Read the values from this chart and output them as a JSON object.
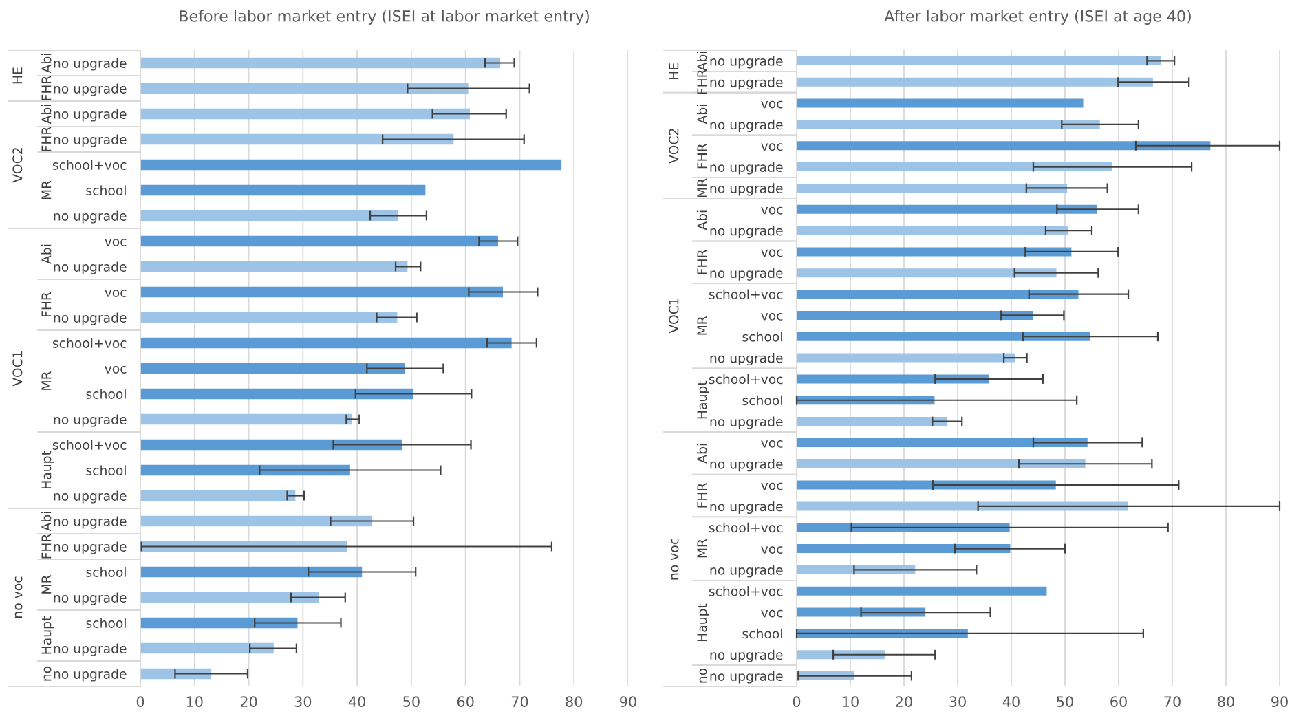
{
  "chart_data": [
    {
      "type": "bar",
      "orientation": "horizontal",
      "title": "Before labor market entry (ISEI at labor market entry)",
      "categories": [
        "no upgrade",
        "no upgrade",
        "no upgrade",
        "no upgrade",
        "school+voc",
        "school",
        "no upgrade",
        "voc",
        "no upgrade",
        "voc",
        "no upgrade",
        "school+voc",
        "voc",
        "school",
        "no upgrade",
        "school+voc",
        "school",
        "no upgrade",
        "no upgrade",
        "no upgrade",
        "school",
        "no upgrade",
        "school",
        "no upgrade",
        "no upgrade"
      ],
      "values": [
        66.4,
        60.5,
        60.8,
        57.8,
        77.7,
        52.6,
        47.5,
        66.0,
        49.3,
        66.9,
        47.4,
        68.5,
        48.8,
        50.4,
        39.0,
        48.3,
        38.7,
        28.6,
        42.8,
        38.1,
        40.9,
        32.9,
        29.0,
        24.6,
        13.1
      ],
      "errors": [
        [
          63.6,
          69.0
        ],
        [
          49.3,
          71.8
        ],
        [
          53.9,
          67.5
        ],
        [
          44.7,
          70.8
        ],
        null,
        null,
        [
          42.4,
          52.8
        ],
        [
          62.5,
          69.6
        ],
        [
          47.1,
          51.7
        ],
        [
          60.6,
          73.3
        ],
        [
          43.6,
          51.0
        ],
        [
          64.0,
          73.1
        ],
        [
          41.8,
          55.9
        ],
        [
          39.7,
          61.1
        ],
        [
          38.0,
          40.4
        ],
        [
          35.6,
          61.0
        ],
        [
          22.0,
          55.4
        ],
        [
          27.1,
          30.2
        ],
        [
          35.1,
          50.4
        ],
        [
          0.2,
          75.9
        ],
        [
          31.0,
          50.8
        ],
        [
          27.8,
          37.8
        ],
        [
          21.1,
          37.0
        ],
        [
          20.2,
          28.8
        ],
        [
          6.4,
          19.8
        ]
      ],
      "colors": [
        "#9dc3e6",
        "#9dc3e6",
        "#9dc3e6",
        "#9dc3e6",
        "#5b9bd5",
        "#5b9bd5",
        "#9dc3e6",
        "#5b9bd5",
        "#9dc3e6",
        "#5b9bd5",
        "#9dc3e6",
        "#5b9bd5",
        "#5b9bd5",
        "#5b9bd5",
        "#9dc3e6",
        "#5b9bd5",
        "#5b9bd5",
        "#9dc3e6",
        "#9dc3e6",
        "#9dc3e6",
        "#5b9bd5",
        "#9dc3e6",
        "#5b9bd5",
        "#9dc3e6",
        "#9dc3e6"
      ],
      "xlim": [
        0,
        90
      ],
      "xticks": [
        0,
        10,
        20,
        30,
        40,
        50,
        60,
        70,
        80,
        90
      ],
      "grid": "x",
      "annotations": [
        "HE",
        "VOC2",
        "VOC1",
        "no voc",
        "Abi",
        "FHR",
        "Abi",
        "FHR",
        "MR",
        "Abi",
        "FHR",
        "MR",
        "Haupt",
        "Abi",
        "FHR",
        "MR",
        "Haupt",
        "no"
      ]
    },
    {
      "type": "bar",
      "orientation": "horizontal",
      "title": "After labor market entry (ISEI at age 40)",
      "categories": [
        "no upgrade",
        "no upgrade",
        "voc",
        "no upgrade",
        "voc",
        "no upgrade",
        "no upgrade",
        "voc",
        "no upgrade",
        "voc",
        "no upgrade",
        "school+voc",
        "voc",
        "school",
        "no upgrade",
        "school+voc",
        "school",
        "no upgrade",
        "voc",
        "no upgrade",
        "voc",
        "no upgrade",
        "school+voc",
        "voc",
        "no upgrade",
        "school+voc",
        "voc",
        "school",
        "no upgrade",
        "no upgrade"
      ],
      "values": [
        67.9,
        66.4,
        53.4,
        56.5,
        77.1,
        58.8,
        50.4,
        55.9,
        50.6,
        51.2,
        48.4,
        52.5,
        44.0,
        54.7,
        40.7,
        35.8,
        25.7,
        28.1,
        54.2,
        53.8,
        48.3,
        61.8,
        39.7,
        39.8,
        22.1,
        46.6,
        24.0,
        31.9,
        16.4,
        10.8
      ],
      "errors": [
        [
          65.3,
          70.4
        ],
        [
          59.9,
          73.1
        ],
        null,
        [
          49.4,
          63.7
        ],
        [
          63.2,
          90
        ],
        [
          44.1,
          73.6
        ],
        [
          42.8,
          57.9
        ],
        [
          48.5,
          63.7
        ],
        [
          46.4,
          55.0
        ],
        [
          42.6,
          59.9
        ],
        [
          40.6,
          56.2
        ],
        [
          43.3,
          61.8
        ],
        [
          38.1,
          49.8
        ],
        [
          42.2,
          67.3
        ],
        [
          38.6,
          42.9
        ],
        [
          25.8,
          45.9
        ],
        [
          0,
          52.2
        ],
        [
          25.3,
          30.8
        ],
        [
          44.1,
          64.4
        ],
        [
          41.4,
          66.2
        ],
        [
          25.4,
          71.2
        ],
        [
          33.8,
          90
        ],
        [
          10.2,
          69.2
        ],
        [
          29.5,
          50.0
        ],
        [
          10.7,
          33.5
        ],
        null,
        [
          12.0,
          36.1
        ],
        [
          0,
          64.6
        ],
        [
          6.8,
          25.8
        ],
        [
          0.3,
          21.4
        ]
      ],
      "colors": [
        "#9dc3e6",
        "#9dc3e6",
        "#5b9bd5",
        "#9dc3e6",
        "#5b9bd5",
        "#9dc3e6",
        "#9dc3e6",
        "#5b9bd5",
        "#9dc3e6",
        "#5b9bd5",
        "#9dc3e6",
        "#5b9bd5",
        "#5b9bd5",
        "#5b9bd5",
        "#9dc3e6",
        "#5b9bd5",
        "#5b9bd5",
        "#9dc3e6",
        "#5b9bd5",
        "#9dc3e6",
        "#5b9bd5",
        "#9dc3e6",
        "#5b9bd5",
        "#5b9bd5",
        "#9dc3e6",
        "#5b9bd5",
        "#5b9bd5",
        "#5b9bd5",
        "#9dc3e6",
        "#9dc3e6"
      ],
      "xlim": [
        0,
        90
      ],
      "xticks": [
        0,
        10,
        20,
        30,
        40,
        50,
        60,
        70,
        80,
        90
      ],
      "grid": "x",
      "annotations": [
        "HE",
        "VOC2",
        "VOC1",
        "no voc",
        "Abi",
        "FHR",
        "Abi",
        "FHR",
        "MR",
        "Abi",
        "FHR",
        "MR",
        "Haupt",
        "Abi",
        "FHR",
        "MR",
        "Haupt",
        "no"
      ]
    }
  ]
}
